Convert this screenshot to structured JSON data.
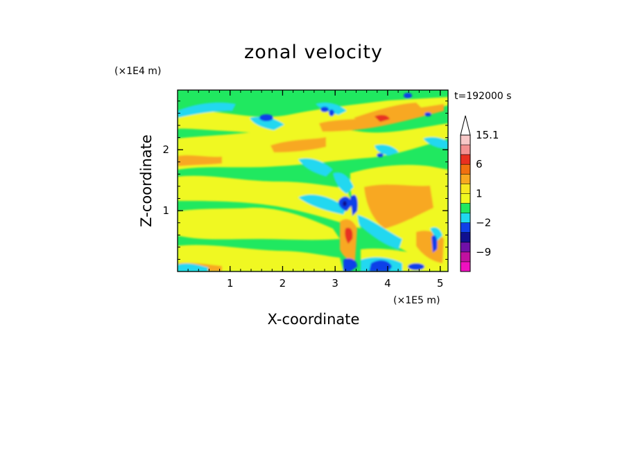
{
  "chart_data": {
    "type": "heatmap",
    "title": "zonal velocity",
    "xlabel": "X-coordinate",
    "ylabel": "Z-coordinate",
    "x_unit": "(×1E5 m)",
    "y_unit": "(×1E4 m)",
    "time_label": "t=192000 s",
    "xlim": [
      0,
      5.15
    ],
    "ylim": [
      0,
      2.98
    ],
    "x_ticks": [
      "1",
      "2",
      "3",
      "4",
      "5"
    ],
    "y_ticks": [
      "1",
      "2"
    ],
    "x_tick_values": [
      1,
      2,
      3,
      4,
      5
    ],
    "y_tick_values": [
      1,
      2
    ],
    "colorbar": {
      "labels": [
        "15.1",
        "6",
        "1",
        "−2",
        "−9"
      ],
      "label_levels": [
        15.1,
        6,
        1,
        -2,
        -9
      ],
      "levels_top_to_bottom": [
        15.1,
        12,
        9,
        6,
        4,
        2,
        1,
        0,
        -1,
        -2,
        -4,
        -6,
        -9,
        -12,
        -15
      ],
      "colors_top_to_bottom": [
        "#f8c8c8",
        "#f49090",
        "#e83020",
        "#f07010",
        "#f8a820",
        "#f8e820",
        "#f0f820",
        "#20e860",
        "#20d8f0",
        "#1040e8",
        "#101090",
        "#7010a8",
        "#c010a0",
        "#f010c0"
      ],
      "extend_top_color": "#ffffff"
    },
    "description_fields": {
      "background_value_color": "#20e860",
      "positive_color": "#f0f820",
      "strong_positive_color": "#f8a820",
      "negative_color": "#20d8f0",
      "strong_negative_color": "#1040e8"
    }
  }
}
